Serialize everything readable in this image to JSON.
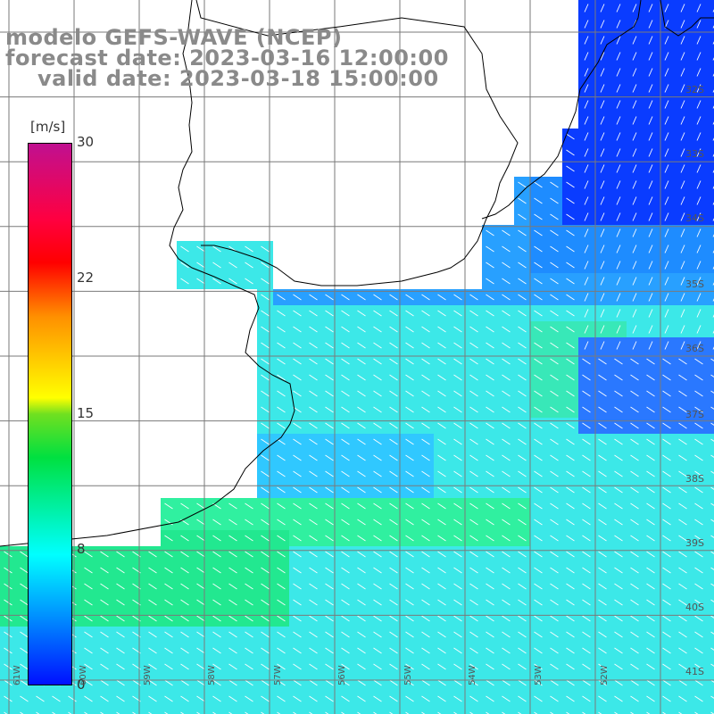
{
  "title": {
    "line1": "modelo GEFS-WAVE (NCEP)",
    "line2": "forecast date: 2023-03-16 12:00:00",
    "line3": "valid date: 2023-03-18 15:00:00"
  },
  "colorbar": {
    "unit": "[m/s]",
    "ticks": [
      "30",
      "22",
      "15",
      "8",
      "0"
    ],
    "tick_values": [
      30,
      22,
      15,
      8,
      0
    ]
  },
  "lat_labels": [
    "32S",
    "33S",
    "34S",
    "35S",
    "36S",
    "37S",
    "38S",
    "39S",
    "40S",
    "41S"
  ],
  "lon_labels": [
    "61W",
    "60W",
    "59W",
    "58W",
    "57W",
    "56W",
    "55W",
    "54W",
    "53W",
    "52W"
  ],
  "colors": {
    "land": "#ffffff",
    "coast": "#000000",
    "grid": "#7a7a7a",
    "arrow": "#ffffff"
  }
}
